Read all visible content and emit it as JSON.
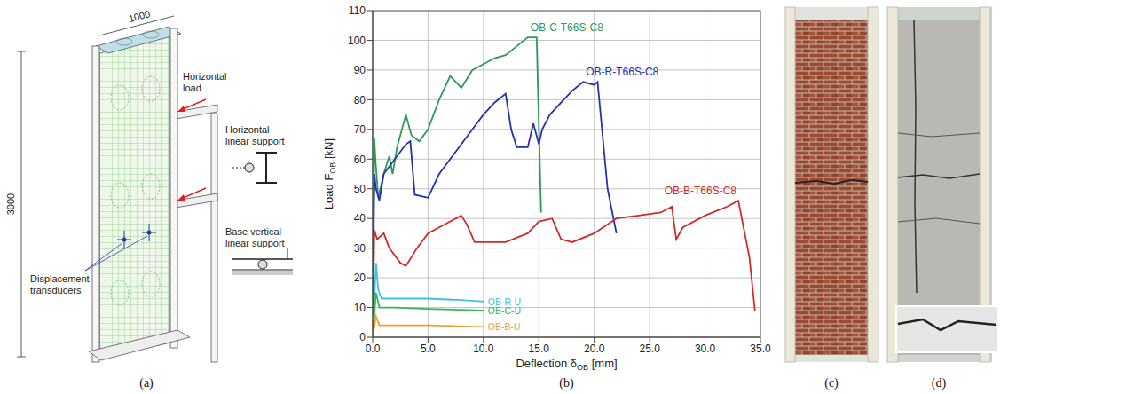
{
  "diagram": {
    "caption": "(a)",
    "width_dimension": 1000,
    "height_dimension": 3000,
    "horizontal_load": "Horizontal load",
    "horizontal_support": "Horizontal linear support",
    "base_support": "Base vertical linear support",
    "transducers": "Displacement transducers"
  },
  "chart_data": {
    "caption": "(b)",
    "type": "line",
    "x_label": {
      "text": "Deflection δ",
      "sub": "OB",
      "unit": " [mm]"
    },
    "y_label": {
      "text": "Load F",
      "sub": "OB",
      "unit": " [kN]"
    },
    "xlim": [
      0,
      35
    ],
    "xticks": [
      {
        "value": 0,
        "label": "0.0"
      },
      {
        "value": 5,
        "label": "5.0"
      },
      {
        "value": 10,
        "label": "10.0"
      },
      {
        "value": 15,
        "label": "15.0"
      },
      {
        "value": 20,
        "label": "20.0"
      },
      {
        "value": 25,
        "label": "25.0"
      },
      {
        "value": 30,
        "label": "30.0"
      },
      {
        "value": 35,
        "label": "35.0"
      }
    ],
    "ylim": [
      0,
      110
    ],
    "yticks": [
      0,
      10,
      20,
      30,
      40,
      50,
      60,
      70,
      80,
      90,
      100,
      110
    ],
    "grid": true,
    "series": [
      {
        "name": "OB-C-T66S-C8",
        "color": "#2e9a5a",
        "x": [
          0,
          0.15,
          0.25,
          0.5,
          1,
          1.5,
          1.8,
          2.2,
          3,
          3.5,
          4.2,
          5,
          6,
          7,
          8,
          9,
          10,
          11,
          12,
          13,
          14,
          14.8,
          15.2
        ],
        "values": [
          0,
          67,
          60,
          47,
          55,
          61,
          55,
          64,
          75,
          68,
          66,
          70,
          80,
          88,
          84,
          90,
          92,
          94,
          95,
          98,
          101,
          101,
          42
        ]
      },
      {
        "name": "OB-R-T66S-C8",
        "color": "#2431a8",
        "x": [
          0,
          0.15,
          0.3,
          0.6,
          1,
          2,
          3,
          3.4,
          3.8,
          5,
          6,
          7,
          8,
          9,
          10,
          11,
          12,
          12.5,
          13,
          14,
          14.5,
          15,
          15.3,
          16,
          17,
          18,
          19,
          20,
          20.3,
          21.2,
          22
        ],
        "values": [
          0,
          55,
          50,
          46,
          55,
          60,
          65,
          66,
          48,
          47,
          55,
          60,
          65,
          70,
          75,
          79,
          82,
          70,
          64,
          64,
          72,
          65,
          70,
          75,
          79,
          83,
          86,
          85,
          86,
          50,
          35
        ]
      },
      {
        "name": "OB-B-T66S-C8",
        "color": "#d42a2a",
        "x": [
          0,
          0.15,
          0.4,
          1,
          1.5,
          2.5,
          3,
          4,
          5,
          6,
          7,
          8,
          8.5,
          9.2,
          10,
          12,
          14,
          15,
          16.2,
          17,
          18,
          20,
          22,
          24,
          26,
          27,
          27.4,
          28,
          30,
          32,
          33,
          34,
          34.5
        ],
        "values": [
          0,
          36,
          33,
          35,
          30,
          25,
          24,
          30,
          35,
          37,
          39,
          41,
          38,
          32,
          32,
          32,
          35,
          39,
          40,
          33,
          32,
          35,
          40,
          41,
          42,
          44,
          33,
          37,
          41,
          44,
          46,
          27,
          9
        ]
      },
      {
        "name": "OB-R-U",
        "color": "#3ec3dc",
        "x": [
          0,
          0.3,
          0.5,
          0.8,
          2,
          5,
          8,
          10
        ],
        "values": [
          0,
          25,
          16,
          13,
          13,
          13,
          12.5,
          12
        ]
      },
      {
        "name": "OB-C-U",
        "color": "#3cb35a",
        "x": [
          0,
          0.3,
          0.6,
          2,
          5,
          10
        ],
        "values": [
          0,
          15,
          10,
          10,
          9.5,
          9
        ]
      },
      {
        "name": "OB-B-U",
        "color": "#f0a030",
        "x": [
          0,
          0.3,
          0.6,
          2,
          5,
          10
        ],
        "values": [
          0,
          7,
          4,
          4,
          4,
          3.5
        ]
      }
    ]
  },
  "photos": [
    {
      "caption": "(c)"
    },
    {
      "caption": "(d)"
    }
  ]
}
